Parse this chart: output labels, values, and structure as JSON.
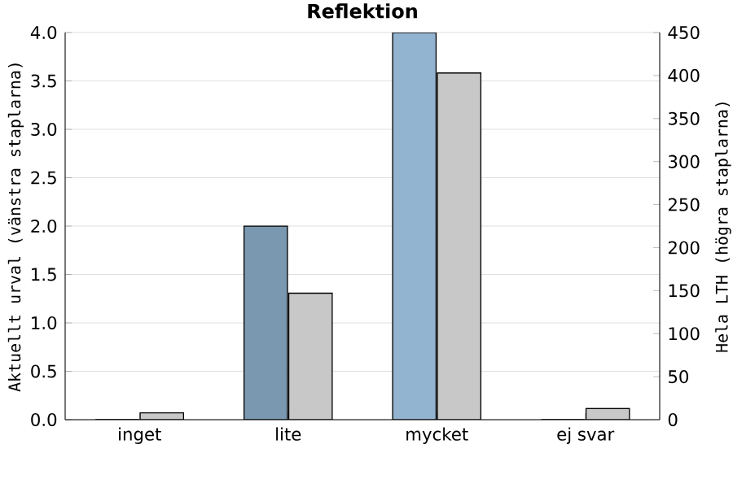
{
  "chart_data": {
    "type": "bar",
    "title": "Reflektion",
    "categories": [
      "inget",
      "lite",
      "mycket",
      "ej svar"
    ],
    "ylabel": "Aktuellt urval (vänstra staplarna)",
    "y2label": "Hela LTH (högra staplarna)",
    "ylim": [
      0,
      4
    ],
    "yticks": [
      {
        "value": 0,
        "label": "0.0"
      },
      0.5,
      {
        "value": 1,
        "label": "1.0"
      },
      1.5,
      {
        "value": 2,
        "label": "2.0"
      },
      2.5,
      {
        "value": 3,
        "label": "3.0"
      },
      3.5,
      {
        "value": 4,
        "label": "4.0"
      }
    ],
    "y2lim": [
      0,
      450
    ],
    "y2ticks": [
      0,
      50,
      100,
      150,
      200,
      250,
      300,
      350,
      400,
      450
    ],
    "grid": "y",
    "series": [
      {
        "colors": [
          "#7a98b0",
          "#7a98b0",
          "#93b4d0",
          "#93b4d0"
        ],
        "values": [
          0,
          2.0,
          4.0,
          0
        ]
      },
      {
        "axis": "y2",
        "color": "#c8c8c8",
        "values": [
          8,
          147,
          403,
          13
        ]
      }
    ]
  }
}
